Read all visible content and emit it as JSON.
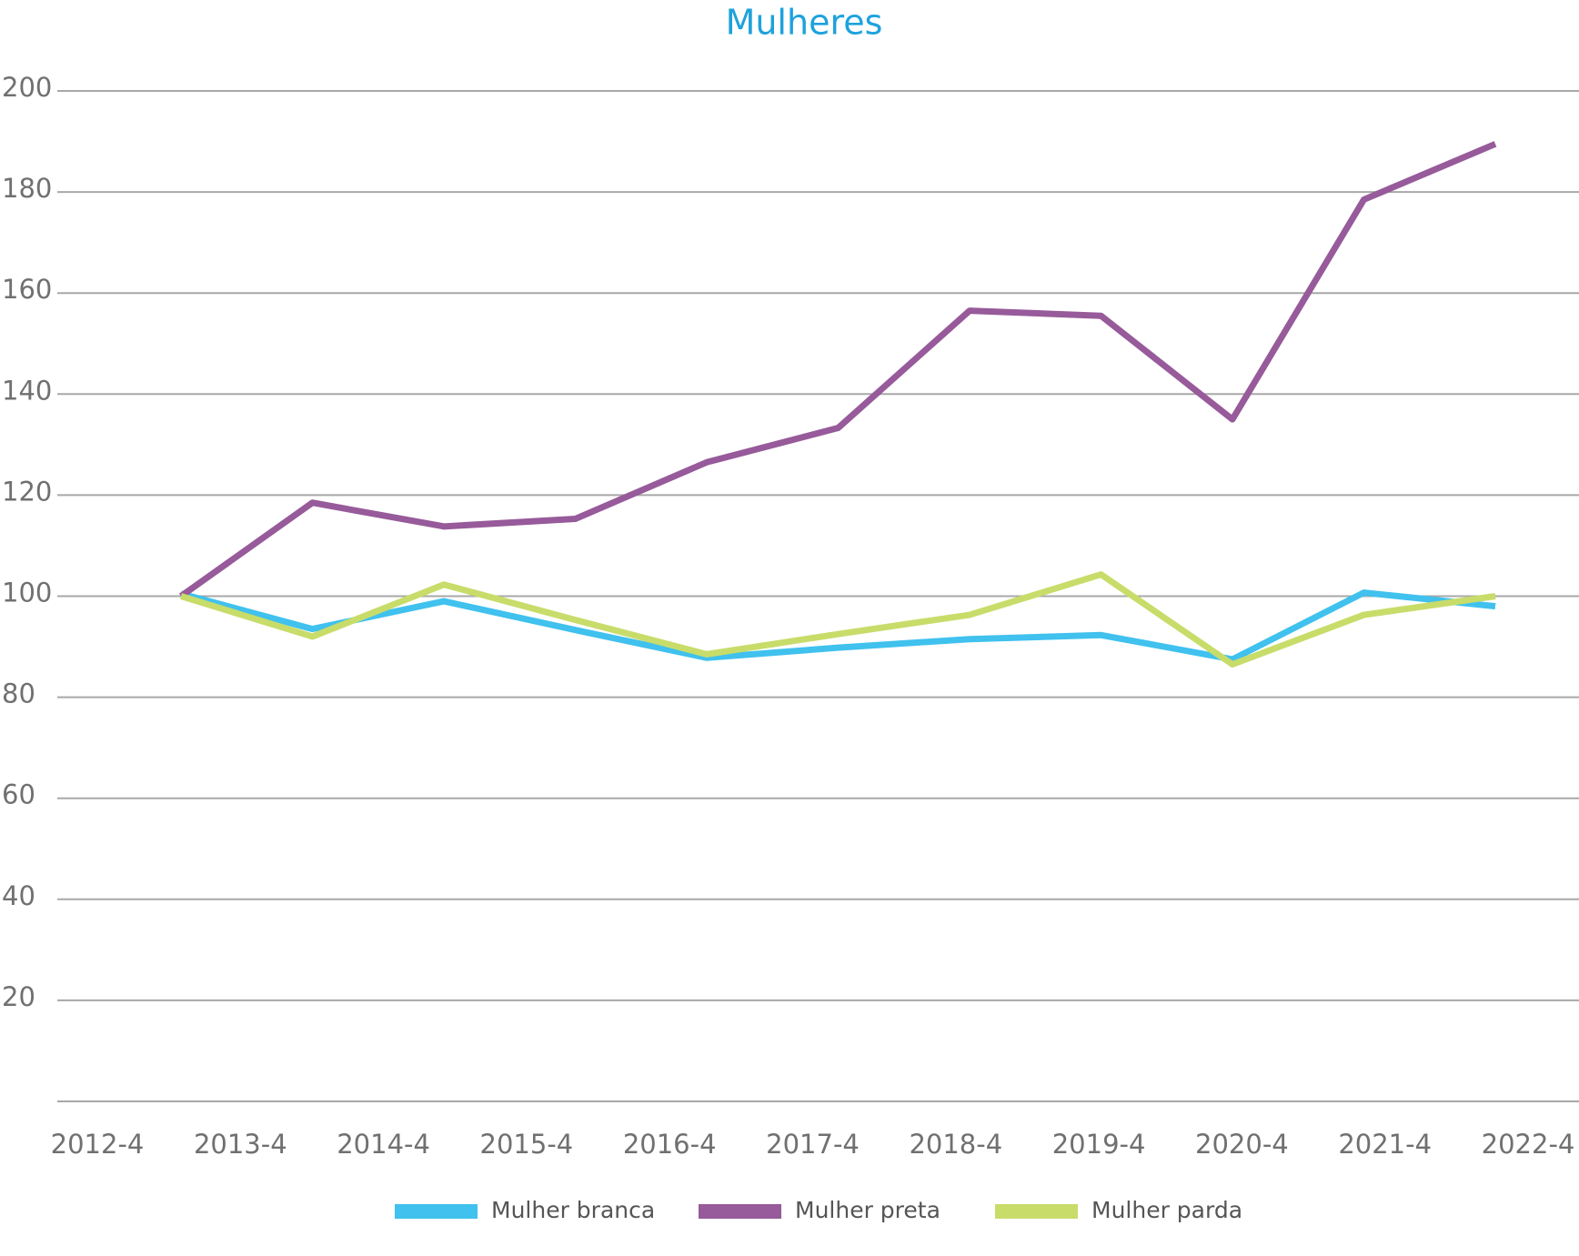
{
  "chart_data": {
    "type": "line",
    "title": "Mulheres",
    "categories": [
      "2012-4",
      "2013-4",
      "2014-4",
      "2015-4",
      "2016-4",
      "2017-4",
      "2018-4",
      "2019-4",
      "2020-4",
      "2021-4",
      "2022-4"
    ],
    "series": [
      {
        "name": "Mulher branca",
        "color": "#40c1ee",
        "values": [
          100.5,
          93.5,
          99,
          93.3,
          87.8,
          89.8,
          91.5,
          92.3,
          87.5,
          100.7,
          98
        ]
      },
      {
        "name": "Mulher preta",
        "color": "#975a9a",
        "values": [
          100,
          118.5,
          113.8,
          115.3,
          126.5,
          133.3,
          156.5,
          155.5,
          135,
          178.5,
          189.5
        ]
      },
      {
        "name": "Mulher parda",
        "color": "#c8dc6a",
        "values": [
          100,
          92,
          102.3,
          95.3,
          88.5,
          92.5,
          96.3,
          104.3,
          86.5,
          96.3,
          100
        ]
      }
    ],
    "ylim": [
      0,
      200
    ],
    "yticks": [
      20,
      40,
      60,
      80,
      100,
      120,
      140,
      160,
      180,
      200
    ],
    "grid": true,
    "legend": "bottom"
  }
}
